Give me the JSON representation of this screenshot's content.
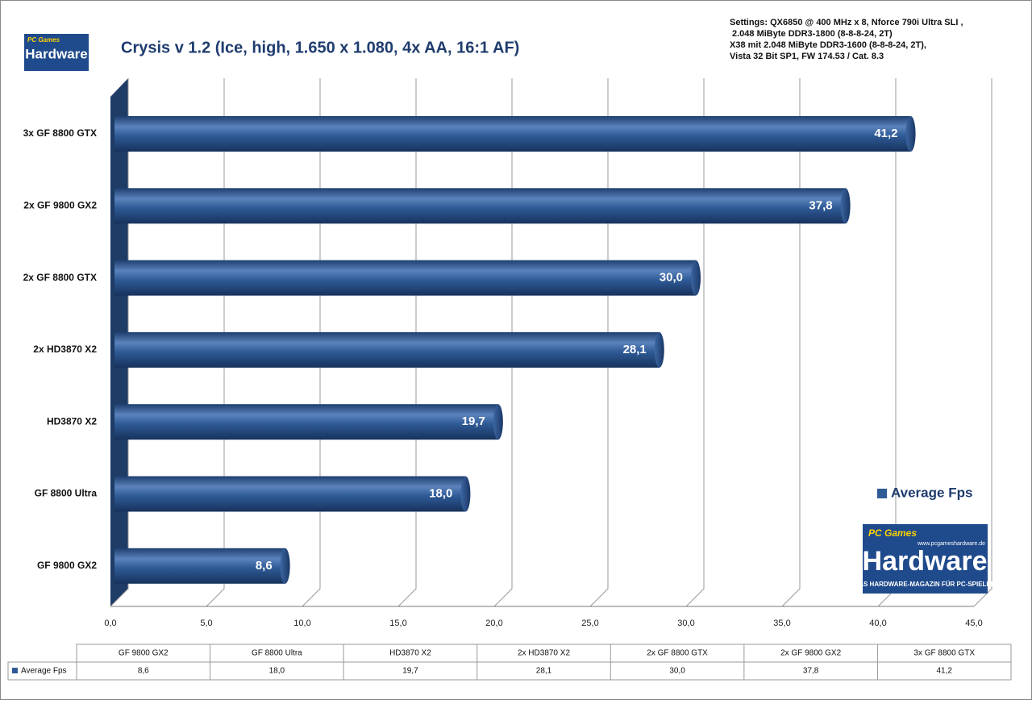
{
  "chart_data": {
    "type": "bar",
    "orientation": "horizontal",
    "title": "Crysis v 1.2 (Ice, high, 1.650 x 1.080, 4x AA, 16:1 AF)",
    "settings": [
      "Settings: QX6850 @ 400 MHz x 8, Nforce 790i Ultra SLI ,",
      "2.048 MiByte DDR3-1800 (8-8-8-24, 2T)",
      "X38 mit 2.048 MiByte DDR3-1600 (8-8-8-24, 2T),",
      "Vista 32 Bit SP1, FW 174.53 / Cat. 8.3"
    ],
    "logo": {
      "top": "PC Games",
      "name": "Hardware",
      "url": "www.pcgameshardware.de",
      "slogan": "DAS HARDWARE-MAGAZIN FÜR PC-SPIELER"
    },
    "categories": [
      "GF 9800 GX2",
      "GF 8800 Ultra",
      "HD3870 X2",
      "2x HD3870 X2",
      "2x GF 8800 GTX",
      "2x GF 9800 GX2",
      "3x GF 8800 GTX"
    ],
    "series": [
      {
        "name": "Average Fps",
        "color": "#2f5b97",
        "values": [
          8.6,
          18.0,
          19.7,
          28.1,
          30.0,
          37.8,
          41.2
        ],
        "value_labels": [
          "8,6",
          "18,0",
          "19,7",
          "28,1",
          "30,0",
          "37,8",
          "41,2"
        ]
      }
    ],
    "xlim": [
      0,
      45
    ],
    "xticks": [
      {
        "value": 0,
        "label": "0,0"
      },
      {
        "value": 5,
        "label": "5,0"
      },
      {
        "value": 10,
        "label": "10,0"
      },
      {
        "value": 15,
        "label": "15,0"
      },
      {
        "value": 20,
        "label": "20,0"
      },
      {
        "value": 25,
        "label": "25,0"
      },
      {
        "value": 30,
        "label": "30,0"
      },
      {
        "value": 35,
        "label": "35,0"
      },
      {
        "value": 40,
        "label": "40,0"
      },
      {
        "value": 45,
        "label": "45,0"
      }
    ],
    "grid": true,
    "legend": "right"
  }
}
